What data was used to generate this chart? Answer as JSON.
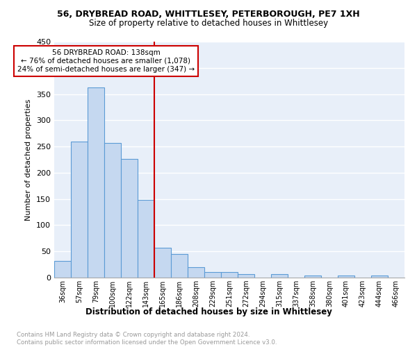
{
  "title1": "56, DRYBREAD ROAD, WHITTLESEY, PETERBOROUGH, PE7 1XH",
  "title2": "Size of property relative to detached houses in Whittlesey",
  "xlabel": "Distribution of detached houses by size in Whittlesey",
  "ylabel": "Number of detached properties",
  "bar_color": "#c5d8f0",
  "bar_edge_color": "#5b9bd5",
  "background_color": "#e8eff9",
  "bins": [
    "36sqm",
    "57sqm",
    "79sqm",
    "100sqm",
    "122sqm",
    "143sqm",
    "165sqm",
    "186sqm",
    "208sqm",
    "229sqm",
    "251sqm",
    "272sqm",
    "294sqm",
    "315sqm",
    "337sqm",
    "358sqm",
    "380sqm",
    "401sqm",
    "423sqm",
    "444sqm",
    "466sqm"
  ],
  "values": [
    32,
    260,
    363,
    257,
    226,
    148,
    57,
    45,
    20,
    11,
    11,
    7,
    0,
    6,
    0,
    4,
    0,
    4,
    0,
    4,
    0
  ],
  "vline_x": 5.5,
  "vline_color": "#cc0000",
  "annotation_line1": "56 DRYBREAD ROAD: 138sqm",
  "annotation_line2": "← 76% of detached houses are smaller (1,078)",
  "annotation_line3": "24% of semi-detached houses are larger (347) →",
  "annotation_box_color": "white",
  "annotation_box_edge": "#cc0000",
  "footer_text": "Contains HM Land Registry data © Crown copyright and database right 2024.\nContains public sector information licensed under the Open Government Licence v3.0.",
  "ylim": [
    0,
    450
  ],
  "yticks": [
    0,
    50,
    100,
    150,
    200,
    250,
    300,
    350,
    400,
    450
  ],
  "grid_color": "#ffffff"
}
